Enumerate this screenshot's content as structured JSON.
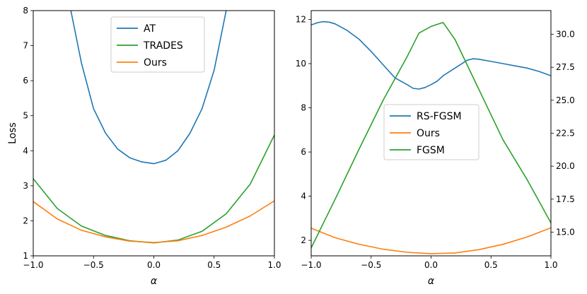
{
  "chart_data": [
    {
      "type": "line",
      "xlabel": "α",
      "ylabel": "Loss",
      "xlim": [
        -1.0,
        1.0
      ],
      "ylim": [
        1,
        8
      ],
      "xticks": [
        "−1.0",
        "−0.5",
        "0.0",
        "0.5",
        "1.0"
      ],
      "yticks": [
        "1",
        "2",
        "3",
        "4",
        "5",
        "6",
        "7",
        "8"
      ],
      "legend_position": "top-center",
      "series": [
        {
          "name": "AT",
          "color": "#1f77b4",
          "x": [
            -0.75,
            -0.7,
            -0.6,
            -0.5,
            -0.4,
            -0.3,
            -0.2,
            -0.1,
            0.0,
            0.1,
            0.2,
            0.3,
            0.4,
            0.5,
            0.6
          ],
          "y": [
            9.2,
            8.2,
            6.5,
            5.2,
            4.5,
            4.05,
            3.8,
            3.68,
            3.63,
            3.73,
            4.0,
            4.5,
            5.2,
            6.3,
            8.0
          ]
        },
        {
          "name": "TRADES",
          "color": "#2ca02c",
          "x": [
            -1.0,
            -0.8,
            -0.6,
            -0.4,
            -0.2,
            0.0,
            0.2,
            0.4,
            0.6,
            0.8,
            1.0
          ],
          "y": [
            3.2,
            2.35,
            1.85,
            1.58,
            1.43,
            1.37,
            1.45,
            1.7,
            2.2,
            3.05,
            4.45
          ]
        },
        {
          "name": "Ours",
          "color": "#ff7f0e",
          "x": [
            -1.0,
            -0.8,
            -0.6,
            -0.4,
            -0.2,
            0.0,
            0.2,
            0.4,
            0.6,
            0.8,
            1.0
          ],
          "y": [
            2.55,
            2.05,
            1.73,
            1.54,
            1.42,
            1.38,
            1.43,
            1.58,
            1.82,
            2.14,
            2.57
          ]
        }
      ]
    },
    {
      "type": "line",
      "xlabel": "α",
      "ylabel": "",
      "xlim": [
        -1.0,
        1.0
      ],
      "ylim": [
        1.3,
        12.4
      ],
      "ylim_right": [
        13.2,
        31.8
      ],
      "xticks": [
        "−1.0",
        "−0.5",
        "0.0",
        "0.5",
        "1.0"
      ],
      "yticks": [
        "2",
        "4",
        "6",
        "8",
        "10",
        "12"
      ],
      "yticks_right": [
        "15.0",
        "17.5",
        "20.0",
        "22.5",
        "25.0",
        "27.5",
        "30.0"
      ],
      "legend_position": "center",
      "series": [
        {
          "name": "RS-FGSM",
          "color": "#1f77b4",
          "axis": "left",
          "x": [
            -1.0,
            -0.95,
            -0.9,
            -0.85,
            -0.8,
            -0.7,
            -0.6,
            -0.5,
            -0.4,
            -0.3,
            -0.2,
            -0.15,
            -0.1,
            -0.05,
            0.0,
            0.05,
            0.1,
            0.2,
            0.3,
            0.35,
            0.4,
            0.5,
            0.6,
            0.7,
            0.8,
            0.9,
            1.0
          ],
          "y": [
            11.75,
            11.85,
            11.9,
            11.88,
            11.8,
            11.5,
            11.1,
            10.55,
            9.95,
            9.35,
            9.05,
            8.88,
            8.85,
            8.92,
            9.05,
            9.2,
            9.45,
            9.8,
            10.15,
            10.22,
            10.2,
            10.1,
            10.0,
            9.9,
            9.8,
            9.65,
            9.45
          ]
        },
        {
          "name": "Ours",
          "color": "#ff7f0e",
          "axis": "left",
          "x": [
            -1.0,
            -0.8,
            -0.6,
            -0.4,
            -0.2,
            0.0,
            0.2,
            0.4,
            0.6,
            0.8,
            1.0
          ],
          "y": [
            2.55,
            2.12,
            1.82,
            1.6,
            1.46,
            1.4,
            1.43,
            1.58,
            1.82,
            2.15,
            2.57
          ]
        },
        {
          "name": "FGSM",
          "color": "#2ca02c",
          "axis": "right",
          "x": [
            -1.0,
            -0.8,
            -0.6,
            -0.4,
            -0.2,
            -0.1,
            0.0,
            0.1,
            0.2,
            0.4,
            0.6,
            0.8,
            1.0
          ],
          "y": [
            13.8,
            17.5,
            21.3,
            25.0,
            28.3,
            30.1,
            30.6,
            30.9,
            29.6,
            25.8,
            22.0,
            19.0,
            15.7
          ]
        }
      ]
    }
  ]
}
